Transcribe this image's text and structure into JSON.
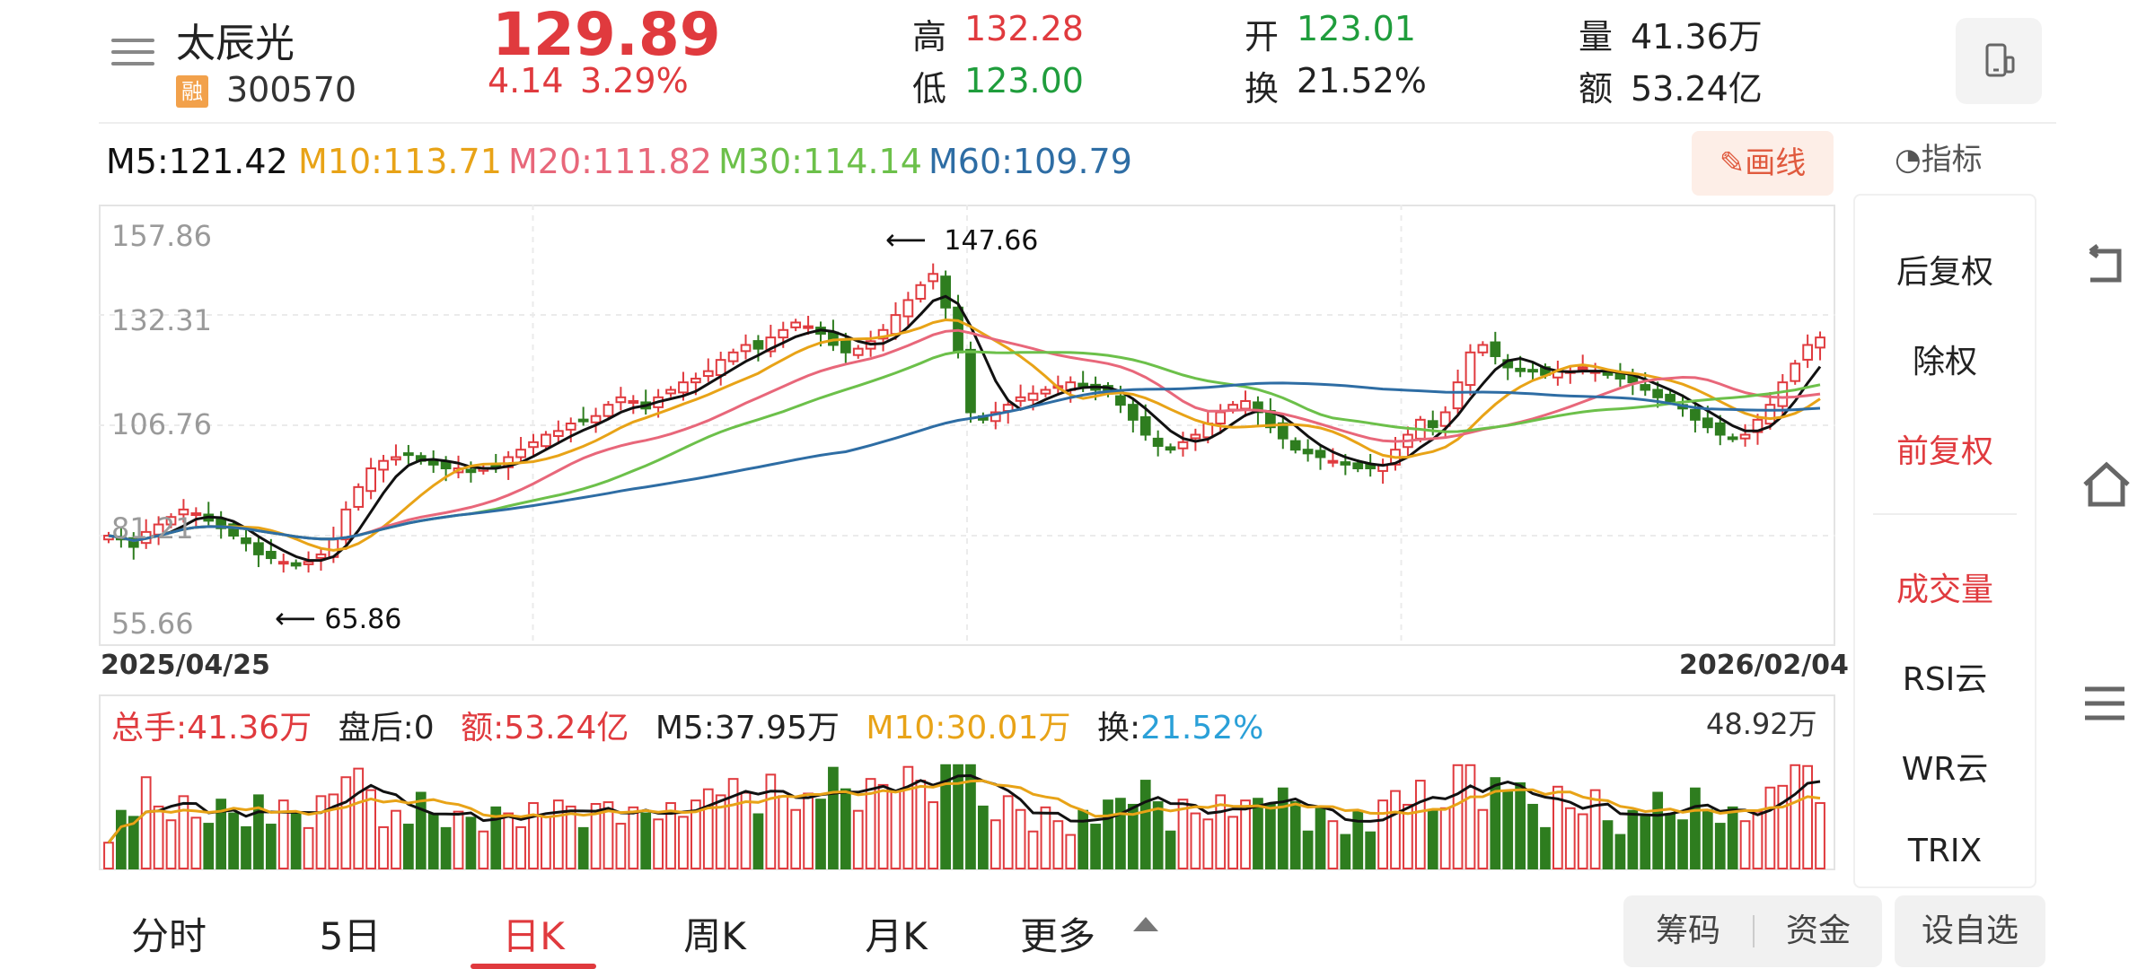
{
  "stock": {
    "name": "太辰光",
    "badge": "融",
    "code": "300570",
    "price": "129.89",
    "change": "4.14",
    "change_pct": "3.29%"
  },
  "quote": {
    "high_label": "高",
    "high": "132.28",
    "low_label": "低",
    "low": "123.00",
    "open_label": "开",
    "open": "123.01",
    "turnover_label": "换",
    "turnover": "21.52%",
    "volume_label": "量",
    "volume": "41.36万",
    "amount_label": "额",
    "amount": "53.24亿"
  },
  "ma": {
    "m5": "M5:121.42",
    "m10": "M10:113.71",
    "m20": "M20:111.82",
    "m30": "M30:114.14",
    "m60": "M60:109.79"
  },
  "toolbar": {
    "draw_label": "画线",
    "indicator_label": "指标"
  },
  "price_axis": [
    "157.86",
    "132.31",
    "106.76",
    "81.21",
    "55.66"
  ],
  "annotations": {
    "max": "147.66",
    "min": "65.86"
  },
  "dates": {
    "start": "2025/04/25",
    "end": "2026/02/04"
  },
  "volume_bar": {
    "total": "总手:41.36万",
    "after": "盘后:0",
    "amount": "额:53.24亿",
    "m5": "M5:37.95万",
    "m10": "M10:30.01万",
    "turnover_label": "换:",
    "turnover_value": "21.52%",
    "max": "48.92万"
  },
  "right_panel": {
    "items": [
      "后复权",
      "除权",
      "前复权",
      "成交量",
      "RSI云",
      "WR云",
      "TRIX"
    ]
  },
  "tabs": [
    "分时",
    "5日",
    "日K",
    "周K",
    "月K",
    "更多"
  ],
  "bottom_buttons": {
    "chips": "筹码",
    "funds": "资金",
    "watchlist": "设自选"
  },
  "colors": {
    "up": "#e03a3e",
    "down": "#2e7d1f",
    "ma5": "#111111",
    "ma10": "#e8a317",
    "ma20": "#e8677a",
    "ma30": "#6cc04a",
    "ma60": "#2e6da4"
  },
  "chart_data": {
    "type": "candlestick",
    "x_range": [
      "2025/04/25",
      "2026/02/04"
    ],
    "y_range": [
      55.66,
      157.86
    ],
    "close_series": [
      77,
      76,
      74,
      78,
      80,
      82,
      84,
      83,
      81,
      79,
      77,
      75,
      72,
      71,
      70,
      69,
      70,
      72,
      76,
      84,
      90,
      95,
      97,
      98,
      99,
      97,
      96,
      95,
      95,
      94,
      95,
      96,
      98,
      100,
      102,
      104,
      105,
      107,
      108,
      109,
      112,
      114,
      113,
      111,
      114,
      116,
      118,
      119,
      121,
      124,
      126,
      128,
      127,
      130,
      132,
      134,
      133,
      131,
      128,
      126,
      127,
      129,
      132,
      136,
      140,
      144,
      147,
      138,
      126,
      110,
      108,
      110,
      112,
      114,
      115,
      116,
      117,
      118,
      117,
      116,
      115,
      112,
      108,
      104,
      101,
      100,
      102,
      104,
      107,
      110,
      112,
      113,
      110,
      106,
      103,
      100,
      99,
      98,
      97,
      96,
      95,
      95,
      96,
      100,
      104,
      108,
      106,
      110,
      118,
      126,
      128,
      125,
      122,
      121,
      121,
      120,
      121,
      121,
      122,
      121,
      120,
      119,
      118,
      116,
      114,
      113,
      111,
      108,
      106,
      104,
      103,
      104,
      108,
      112,
      118,
      123,
      128,
      130
    ]
  }
}
